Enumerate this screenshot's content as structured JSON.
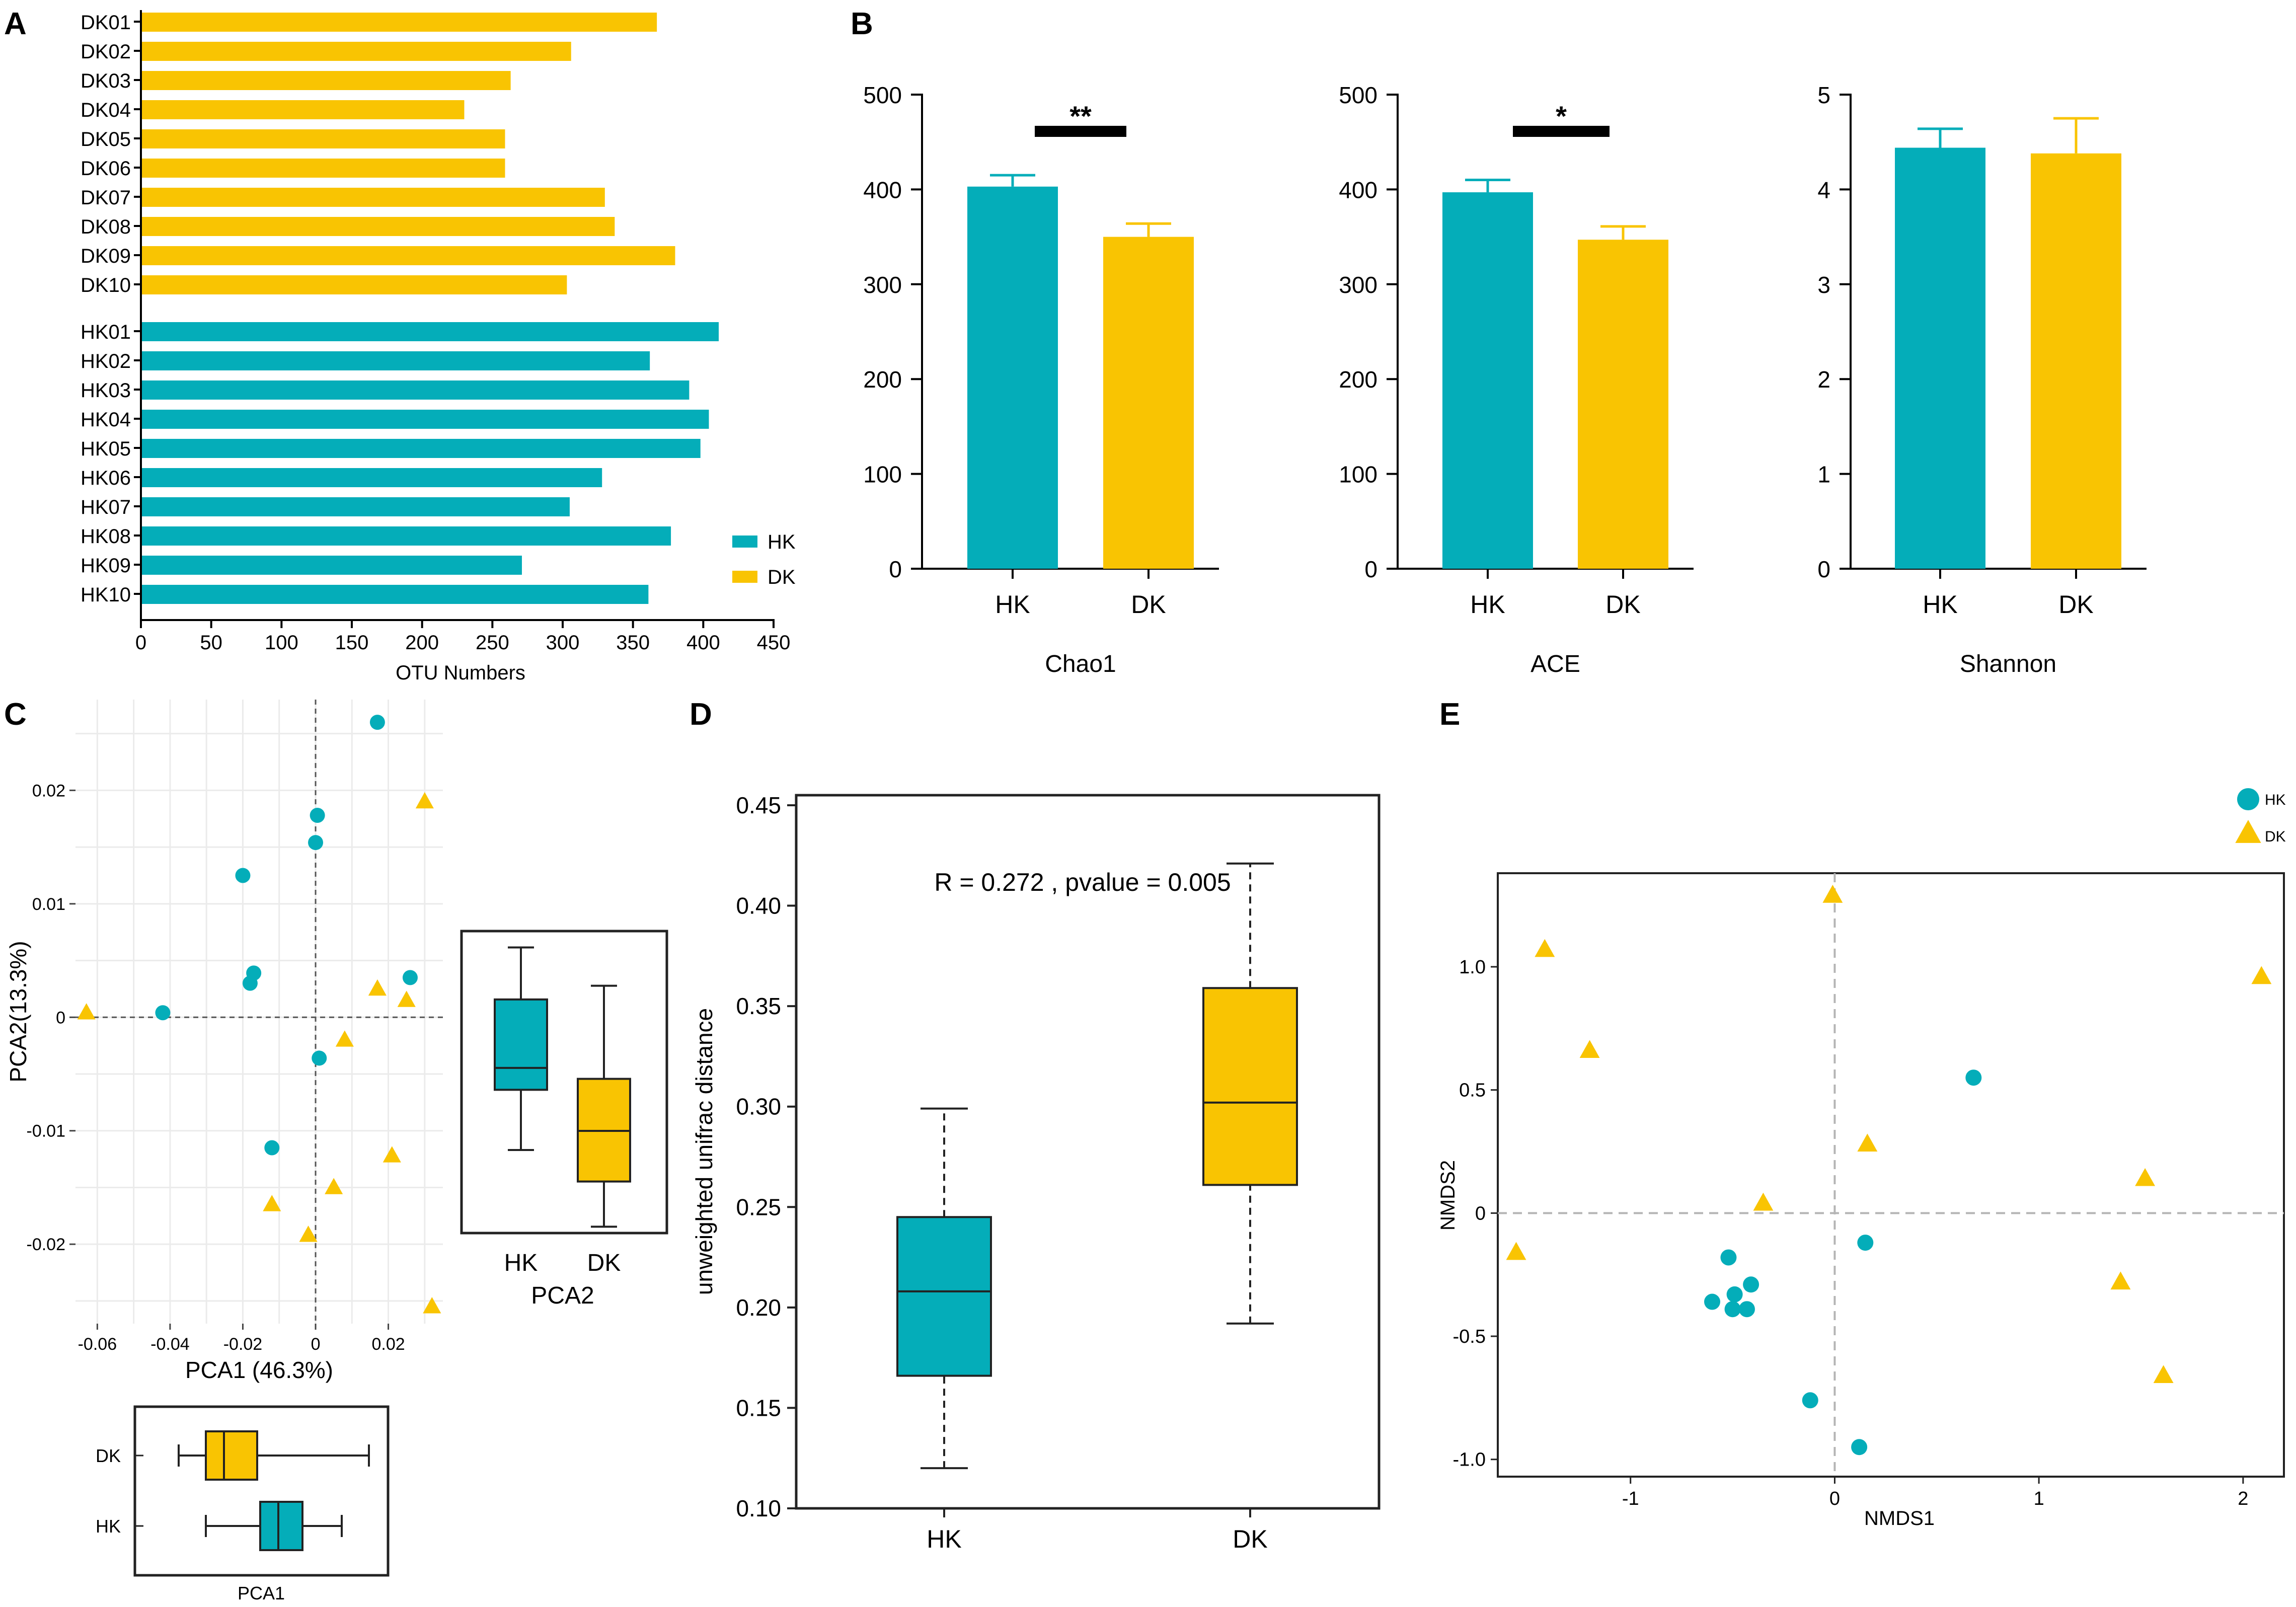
{
  "colors": {
    "hk": "#04ADB9",
    "dk": "#F9C402",
    "axis": "#000000",
    "grid": "#EBEBEB",
    "refline": "#B5B5B5"
  },
  "panel_labels": {
    "a": "A",
    "b": "B",
    "c": "C",
    "d": "D",
    "e": "E"
  },
  "chart_data": [
    {
      "id": "A",
      "type": "bar",
      "orientation": "horizontal",
      "categories": [
        "DK01",
        "DK02",
        "DK03",
        "DK04",
        "DK05",
        "DK06",
        "DK07",
        "DK08",
        "DK09",
        "DK10",
        "HK01",
        "HK02",
        "HK03",
        "HK04",
        "HK05",
        "HK06",
        "HK07",
        "HK08",
        "HK09",
        "HK10"
      ],
      "values": [
        367,
        306,
        263,
        230,
        259,
        259,
        330,
        337,
        380,
        303,
        411,
        362,
        390,
        404,
        398,
        328,
        305,
        377,
        271,
        361
      ],
      "groups": [
        "DK",
        "DK",
        "DK",
        "DK",
        "DK",
        "DK",
        "DK",
        "DK",
        "DK",
        "DK",
        "HK",
        "HK",
        "HK",
        "HK",
        "HK",
        "HK",
        "HK",
        "HK",
        "HK",
        "HK"
      ],
      "xlabel": "OTU Numbers",
      "xlim": [
        0,
        450
      ],
      "xticks": [
        0,
        50,
        100,
        150,
        200,
        250,
        300,
        350,
        400,
        450
      ],
      "legend": [
        {
          "name": "HK"
        },
        {
          "name": "DK"
        }
      ]
    },
    {
      "id": "B1",
      "type": "bar",
      "categories": [
        "HK",
        "DK"
      ],
      "values": [
        403,
        350
      ],
      "errors": [
        12,
        14
      ],
      "title": "Chao1",
      "ylim": [
        0,
        500
      ],
      "yticks": [
        0,
        100,
        200,
        300,
        400,
        500
      ],
      "significance": "**"
    },
    {
      "id": "B2",
      "type": "bar",
      "categories": [
        "HK",
        "DK"
      ],
      "values": [
        397,
        347
      ],
      "errors": [
        13,
        14
      ],
      "title": "ACE",
      "ylim": [
        0,
        500
      ],
      "yticks": [
        0,
        100,
        200,
        300,
        400,
        500
      ],
      "significance": "*"
    },
    {
      "id": "B3",
      "type": "bar",
      "categories": [
        "HK",
        "DK"
      ],
      "values": [
        4.44,
        4.38
      ],
      "errors": [
        0.2,
        0.37
      ],
      "title": "Shannon",
      "ylim": [
        0,
        5
      ],
      "yticks": [
        0,
        1,
        2,
        3,
        4,
        5
      ]
    },
    {
      "id": "C",
      "type": "scatter",
      "xlabel": "PCA1 (46.3%)",
      "ylabel": "PCA2(13.3%)",
      "xlim": [
        -0.066,
        0.035
      ],
      "ylim": [
        -0.027,
        0.028
      ],
      "xticks": [
        -0.06,
        -0.04,
        -0.02,
        0,
        0.02
      ],
      "xtick_labels": [
        "-0.06",
        "-0.04",
        "-0.02",
        "0",
        "0.02"
      ],
      "yticks": [
        -0.02,
        -0.01,
        0,
        0.01,
        0.02
      ],
      "ytick_labels": [
        "-0.02",
        "-0.01",
        "0",
        "0.01",
        "0.02"
      ],
      "series": [
        {
          "name": "HK",
          "marker": "circle",
          "points": [
            [
              0.017,
              0.026
            ],
            [
              0.0005,
              0.0178
            ],
            [
              0.0,
              0.0154
            ],
            [
              -0.02,
              0.0125
            ],
            [
              -0.017,
              0.0039
            ],
            [
              -0.018,
              0.003
            ],
            [
              0.026,
              0.0035
            ],
            [
              -0.042,
              0.0004
            ],
            [
              0.001,
              -0.0036
            ],
            [
              -0.012,
              -0.0115
            ]
          ]
        },
        {
          "name": "DK",
          "marker": "triangle",
          "points": [
            [
              0.03,
              0.019
            ],
            [
              -0.063,
              0.0004
            ],
            [
              0.017,
              0.0025
            ],
            [
              0.025,
              0.0015
            ],
            [
              0.008,
              -0.002
            ],
            [
              0.021,
              -0.0122
            ],
            [
              0.005,
              -0.015
            ],
            [
              -0.012,
              -0.0165
            ],
            [
              -0.002,
              -0.0192
            ],
            [
              0.032,
              -0.0255
            ]
          ]
        }
      ]
    },
    {
      "id": "C_box_pca2",
      "type": "box",
      "xlabel": "PCA2",
      "categories": [
        "HK",
        "DK"
      ],
      "boxes": [
        {
          "whisker_low": -0.0132,
          "q1": -0.0088,
          "median": -0.0072,
          "q3": -0.0022,
          "whisker_high": 0.0016
        },
        {
          "whisker_low": -0.0188,
          "q1": -0.0155,
          "median": -0.0118,
          "q3": -0.008,
          "whisker_high": -0.0012
        }
      ]
    },
    {
      "id": "C_box_pca1",
      "type": "box",
      "orientation": "horizontal",
      "xlabel": "PCA1",
      "categories": [
        "DK",
        "HK"
      ],
      "boxes": [
        {
          "whisker_low": -0.063,
          "q1": -0.054,
          "median": -0.048,
          "q3": -0.037,
          "whisker_high": 0.0
        },
        {
          "whisker_low": -0.054,
          "q1": -0.036,
          "median": -0.03,
          "q3": -0.022,
          "whisker_high": -0.009
        }
      ]
    },
    {
      "id": "D",
      "type": "box",
      "ylabel": "unweighted unifrac distance",
      "ylim": [
        0.1,
        0.455
      ],
      "yticks": [
        0.1,
        0.15,
        0.2,
        0.25,
        0.3,
        0.35,
        0.4,
        0.45
      ],
      "ytick_labels": [
        "0.10",
        "0.15",
        "0.20",
        "0.25",
        "0.30",
        "0.35",
        "0.40",
        "0.45"
      ],
      "annotation": "R = 0.272 , pvalue = 0.005",
      "categories": [
        "HK",
        "DK"
      ],
      "boxes": [
        {
          "whisker_low": 0.12,
          "q1": 0.166,
          "median": 0.208,
          "q3": 0.245,
          "whisker_high": 0.299
        },
        {
          "whisker_low": 0.192,
          "q1": 0.261,
          "median": 0.302,
          "q3": 0.359,
          "whisker_high": 0.421
        }
      ]
    },
    {
      "id": "E",
      "type": "scatter",
      "xlabel": "NMDS1",
      "ylabel": "NMDS2",
      "xlim": [
        -1.65,
        2.2
      ],
      "ylim": [
        -1.07,
        1.38
      ],
      "xticks": [
        -1,
        0,
        1,
        2
      ],
      "xtick_labels": [
        "-1",
        "0",
        "1",
        "2"
      ],
      "yticks": [
        -1.0,
        -0.5,
        0,
        0.5,
        1.0
      ],
      "ytick_labels": [
        "-1.0",
        "-0.5",
        "0",
        "0.5",
        "1.0"
      ],
      "legend": [
        {
          "name": "HK"
        },
        {
          "name": "DK"
        }
      ],
      "series": [
        {
          "name": "HK",
          "marker": "circle",
          "points": [
            [
              0.68,
              0.55
            ],
            [
              0.15,
              -0.12
            ],
            [
              -0.52,
              -0.18
            ],
            [
              -0.6,
              -0.36
            ],
            [
              -0.49,
              -0.33
            ],
            [
              -0.41,
              -0.29
            ],
            [
              -0.5,
              -0.39
            ],
            [
              -0.43,
              -0.39
            ],
            [
              -0.12,
              -0.76
            ],
            [
              0.12,
              -0.95
            ]
          ]
        },
        {
          "name": "DK",
          "marker": "triangle",
          "points": [
            [
              -0.01,
              1.29
            ],
            [
              -1.42,
              1.07
            ],
            [
              -1.2,
              0.66
            ],
            [
              0.16,
              0.28
            ],
            [
              -0.35,
              0.04
            ],
            [
              -1.56,
              -0.16
            ],
            [
              1.52,
              0.14
            ],
            [
              2.09,
              0.96
            ],
            [
              1.4,
              -0.28
            ],
            [
              1.61,
              -0.66
            ]
          ]
        }
      ]
    }
  ]
}
